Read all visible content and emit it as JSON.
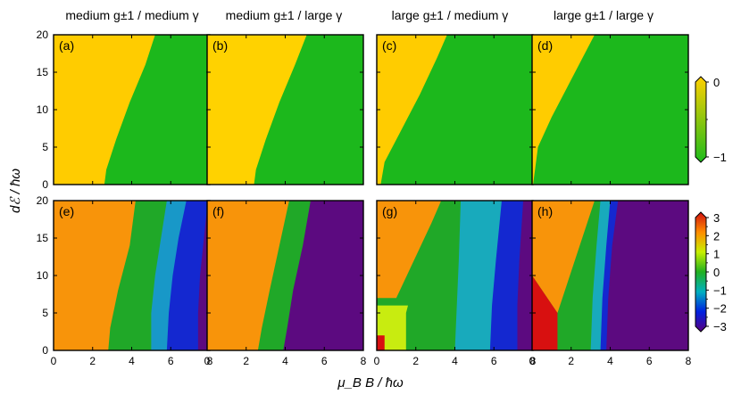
{
  "chart_data": {
    "type": "heatmap",
    "xlabel": "μ_B B / ħω",
    "ylabel": "dℰ / ħω",
    "xlim": [
      0,
      8
    ],
    "ylim": [
      0,
      20
    ],
    "x_ticks": [
      "0",
      "2",
      "4",
      "6",
      "8"
    ],
    "y_ticks": [
      "0",
      "5",
      "10",
      "15",
      "20"
    ],
    "column_titles": [
      "medium g±1 / medium γ",
      "medium g±1 / large γ",
      "large g±1 / medium γ",
      "large g±1 / large γ"
    ],
    "colorbar_top": {
      "range": [
        -1,
        0
      ],
      "ticks": [
        "0",
        "−1"
      ],
      "colors": [
        "#ffd000",
        "#1cbc1c"
      ]
    },
    "colorbar_bottom": {
      "range": [
        -3,
        3
      ],
      "ticks": [
        "3",
        "2",
        "1",
        "0",
        "−1",
        "−2",
        "−3"
      ],
      "colors": [
        "#d01010",
        "#ff8c00",
        "#c8f000",
        "#20b020",
        "#00b0c0",
        "#0020e0",
        "#5a0080"
      ]
    },
    "panels": [
      {
        "label": "(a)",
        "row": 0,
        "col": 0,
        "regions": [
          {
            "value": 0,
            "color": "#ffcc00",
            "boundary": [
              [
                2.6,
                0
              ],
              [
                2.7,
                2
              ],
              [
                3.2,
                6
              ],
              [
                3.9,
                11
              ],
              [
                4.7,
                16
              ],
              [
                5.2,
                20
              ]
            ]
          },
          {
            "value": -1,
            "color": "#1cb81c",
            "boundary": null
          }
        ]
      },
      {
        "label": "(b)",
        "row": 0,
        "col": 1,
        "regions": [
          {
            "value": 0,
            "color": "#ffd200",
            "boundary": [
              [
                2.4,
                0
              ],
              [
                2.5,
                2
              ],
              [
                3.0,
                6
              ],
              [
                3.7,
                11
              ],
              [
                4.5,
                16
              ],
              [
                5.1,
                20
              ]
            ]
          },
          {
            "value": -1,
            "color": "#1cb81c",
            "boundary": null
          }
        ]
      },
      {
        "label": "(c)",
        "row": 0,
        "col": 2,
        "regions": [
          {
            "value": 0,
            "color": "#ffcc00",
            "boundary": [
              [
                0.2,
                0
              ],
              [
                0.4,
                3
              ],
              [
                1.2,
                7
              ],
              [
                2.2,
                12
              ],
              [
                3.1,
                17
              ],
              [
                3.6,
                20
              ]
            ]
          },
          {
            "value": -1,
            "color": "#1cb81c",
            "boundary": null
          }
        ]
      },
      {
        "label": "(d)",
        "row": 0,
        "col": 3,
        "regions": [
          {
            "value": 0,
            "color": "#ffcc00",
            "boundary": [
              [
                0.05,
                0
              ],
              [
                0.3,
                5
              ],
              [
                1.0,
                9
              ],
              [
                2.0,
                14
              ],
              [
                3.0,
                19
              ],
              [
                3.2,
                20
              ]
            ]
          },
          {
            "value": -1,
            "color": "#1cb81c",
            "boundary": null
          }
        ]
      },
      {
        "label": "(e)",
        "row": 1,
        "col": 0,
        "regions": [
          {
            "value": 2.2,
            "color": "#f8940a",
            "boundary": [
              [
                2.8,
                0
              ],
              [
                2.9,
                3
              ],
              [
                3.3,
                8
              ],
              [
                3.9,
                14
              ],
              [
                4.2,
                20
              ]
            ]
          },
          {
            "value": 0,
            "color": "#20a828",
            "boundary": [
              [
                5.0,
                0
              ],
              [
                5.0,
                5
              ],
              [
                5.2,
                10
              ],
              [
                5.5,
                15
              ],
              [
                5.8,
                20
              ]
            ]
          },
          {
            "value": -1.2,
            "color": "#1898c8",
            "boundary": [
              [
                5.8,
                0
              ],
              [
                5.9,
                5
              ],
              [
                6.1,
                10
              ],
              [
                6.4,
                15
              ],
              [
                6.8,
                20
              ]
            ]
          },
          {
            "value": -2.2,
            "color": "#1428d0",
            "boundary": [
              [
                7.4,
                0
              ],
              [
                7.4,
                5
              ],
              [
                7.5,
                10
              ],
              [
                7.7,
                15
              ],
              [
                7.9,
                20
              ]
            ]
          },
          {
            "value": -3,
            "color": "#5c0a80",
            "boundary": null
          }
        ]
      },
      {
        "label": "(f)",
        "row": 1,
        "col": 1,
        "regions": [
          {
            "value": 2.2,
            "color": "#f8940a",
            "boundary": [
              [
                2.6,
                0
              ],
              [
                2.8,
                3
              ],
              [
                3.2,
                8
              ],
              [
                3.7,
                14
              ],
              [
                4.2,
                20
              ]
            ]
          },
          {
            "value": 0,
            "color": "#20a828",
            "boundary": [
              [
                3.9,
                0
              ],
              [
                4.1,
                3
              ],
              [
                4.4,
                8
              ],
              [
                4.9,
                14
              ],
              [
                5.3,
                20
              ]
            ]
          },
          {
            "value": -3,
            "color": "#5c0a80",
            "boundary": null
          }
        ]
      },
      {
        "label": "(g)",
        "row": 1,
        "col": 2,
        "regions": [
          {
            "value": 2.8,
            "color": "#d81010",
            "boundary": [
              [
                0.4,
                0
              ],
              [
                0.4,
                2
              ]
            ]
          },
          {
            "value": 1.2,
            "color": "#c8ec10",
            "boundary": [
              [
                1.5,
                0
              ],
              [
                1.5,
                5
              ],
              [
                1.6,
                6
              ]
            ]
          },
          {
            "value": 2.2,
            "color": "#f8940a",
            "boundary": [
              [
                1.0,
                7
              ],
              [
                1.9,
                12
              ],
              [
                2.8,
                17
              ],
              [
                3.3,
                20
              ]
            ]
          },
          {
            "value": 0,
            "color": "#20a828",
            "boundary": [
              [
                4.0,
                0
              ],
              [
                4.1,
                6
              ],
              [
                4.2,
                12
              ],
              [
                4.3,
                20
              ]
            ]
          },
          {
            "value": -1.2,
            "color": "#18aabc",
            "boundary": [
              [
                5.8,
                0
              ],
              [
                5.9,
                6
              ],
              [
                6.1,
                12
              ],
              [
                6.4,
                20
              ]
            ]
          },
          {
            "value": -2.2,
            "color": "#1428d0",
            "boundary": [
              [
                7.2,
                0
              ],
              [
                7.2,
                6
              ],
              [
                7.3,
                12
              ],
              [
                7.5,
                20
              ]
            ]
          },
          {
            "value": -3,
            "color": "#5c0a80",
            "boundary": null
          }
        ]
      },
      {
        "label": "(h)",
        "row": 1,
        "col": 3,
        "regions": [
          {
            "value": 2.8,
            "color": "#d81010",
            "boundary": [
              [
                0,
                10
              ],
              [
                1.3,
                5
              ],
              [
                1.3,
                0
              ]
            ]
          },
          {
            "value": 2.2,
            "color": "#f8940a",
            "boundary": [
              [
                0,
                20
              ],
              [
                3.2,
                20
              ],
              [
                1.3,
                5
              ],
              [
                0,
                10
              ]
            ]
          },
          {
            "value": 0,
            "color": "#20a828",
            "boundary": [
              [
                3.0,
                0
              ],
              [
                3.1,
                7
              ],
              [
                3.3,
                14
              ],
              [
                3.5,
                20
              ]
            ]
          },
          {
            "value": -1.2,
            "color": "#18aabc",
            "boundary": [
              [
                3.5,
                0
              ],
              [
                3.6,
                7
              ],
              [
                3.8,
                14
              ],
              [
                4.0,
                20
              ]
            ]
          },
          {
            "value": -2.2,
            "color": "#1428d0",
            "boundary": [
              [
                3.8,
                0
              ],
              [
                3.9,
                7
              ],
              [
                4.1,
                14
              ],
              [
                4.4,
                20
              ]
            ]
          },
          {
            "value": -3,
            "color": "#5c0a80",
            "boundary": null
          }
        ]
      }
    ]
  }
}
